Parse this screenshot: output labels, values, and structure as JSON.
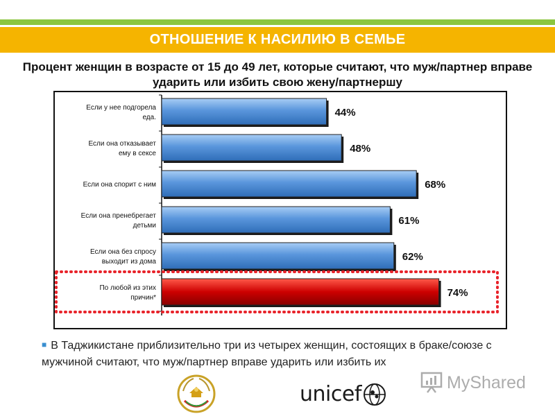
{
  "slide": {
    "banner_title": "ОТНОШЕНИЕ К НАСИЛИЮ В СЕМЬЕ",
    "note": "В Таджикистане приблизительно три из четырех женщин, состоящих в браке/союзе с мужчиной  считают, что муж/партнер вправе ударить или избить их",
    "logo_text": "unicef",
    "watermark": "MyShared"
  },
  "colors": {
    "banner": "#f5b400",
    "stripe": "#8cc63f",
    "bar_blue": "#5a96dc",
    "bar_red": "#cc0000",
    "highlight_border": "#e8232a"
  },
  "icons": {
    "emblem": "tajikistan-emblem-icon",
    "globe": "unicef-globe-icon",
    "presentation": "presentation-board-icon"
  },
  "chart_data": {
    "type": "bar",
    "orientation": "horizontal",
    "title": "Процент женщин в возрасте от 15 до 49 лет, которые считают, что муж/партнер вправе ударить или избить свою жену/партнершу",
    "categories": [
      "Если у нее подгорела еда.",
      "Если она отказывает ему в сексе",
      "Если она спорит с ним",
      "Если она пренебрегает детьми",
      "Если она без спросу выходит из дома",
      "По любой из этих причин*"
    ],
    "values": [
      44,
      48,
      68,
      61,
      62,
      74
    ],
    "data_labels": [
      "44%",
      "48%",
      "68%",
      "61%",
      "62%",
      "74%"
    ],
    "highlighted": [
      false,
      false,
      false,
      false,
      false,
      true
    ],
    "xlim": [
      0,
      100
    ],
    "grid": false,
    "legend": "none"
  }
}
